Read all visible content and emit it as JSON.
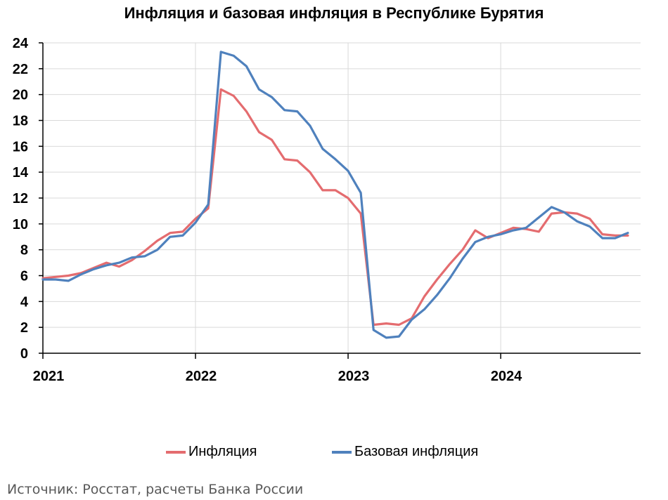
{
  "title": "Инфляция и базовая инфляция в Республике Бурятия",
  "source": "Источник: Росстат, расчеты Банка России",
  "chart_data": {
    "type": "line",
    "title": "Инфляция и базовая инфляция в Республике Бурятия",
    "xlabel": "",
    "ylabel": "",
    "ylim": [
      0,
      24
    ],
    "yticks": [
      0,
      2,
      4,
      6,
      8,
      10,
      12,
      14,
      16,
      18,
      20,
      22,
      24
    ],
    "xlim": [
      "2021-01",
      "2024-12"
    ],
    "xtick_labels": [
      "2021",
      "2022",
      "2023",
      "2024"
    ],
    "xticks": [
      "2021-01",
      "2022-01",
      "2023-01",
      "2024-01"
    ],
    "grid": true,
    "legend": "bottom",
    "x": [
      "2021-01",
      "2021-02",
      "2021-03",
      "2021-04",
      "2021-05",
      "2021-06",
      "2021-07",
      "2021-08",
      "2021-09",
      "2021-10",
      "2021-11",
      "2021-12",
      "2022-01",
      "2022-02",
      "2022-03",
      "2022-04",
      "2022-05",
      "2022-06",
      "2022-07",
      "2022-08",
      "2022-09",
      "2022-10",
      "2022-11",
      "2022-12",
      "2023-01",
      "2023-02",
      "2023-03",
      "2023-04",
      "2023-05",
      "2023-06",
      "2023-07",
      "2023-08",
      "2023-09",
      "2023-10",
      "2023-11",
      "2023-12",
      "2024-01",
      "2024-02",
      "2024-03",
      "2024-04",
      "2024-05",
      "2024-06",
      "2024-07",
      "2024-08",
      "2024-09",
      "2024-10",
      "2024-11"
    ],
    "series": [
      {
        "name": "Инфляция",
        "color": "#E46C6F",
        "values": [
          5.8,
          5.9,
          6.0,
          6.2,
          6.6,
          7.0,
          6.7,
          7.2,
          7.9,
          8.7,
          9.3,
          9.4,
          10.4,
          11.2,
          20.4,
          19.9,
          18.7,
          17.1,
          16.5,
          15.0,
          14.9,
          14.0,
          12.6,
          12.6,
          12.0,
          10.8,
          2.2,
          2.3,
          2.2,
          2.7,
          4.4,
          5.7,
          6.9,
          8.0,
          9.5,
          8.9,
          9.3,
          9.7,
          9.6,
          9.4,
          10.8,
          10.9,
          10.8,
          10.4,
          9.2,
          9.1,
          9.1
        ]
      },
      {
        "name": "Базовая инфляция",
        "color": "#4F81BD",
        "values": [
          5.7,
          5.7,
          5.6,
          6.1,
          6.5,
          6.8,
          7.0,
          7.4,
          7.5,
          8.0,
          9.0,
          9.1,
          10.1,
          11.5,
          23.3,
          23.0,
          22.2,
          20.4,
          19.8,
          18.8,
          18.7,
          17.6,
          15.8,
          15.0,
          14.1,
          12.4,
          1.8,
          1.2,
          1.3,
          2.6,
          3.4,
          4.5,
          5.8,
          7.3,
          8.6,
          9.0,
          9.2,
          9.5,
          9.7,
          10.5,
          11.3,
          10.9,
          10.2,
          9.8,
          8.9,
          8.9,
          9.3
        ]
      }
    ]
  }
}
